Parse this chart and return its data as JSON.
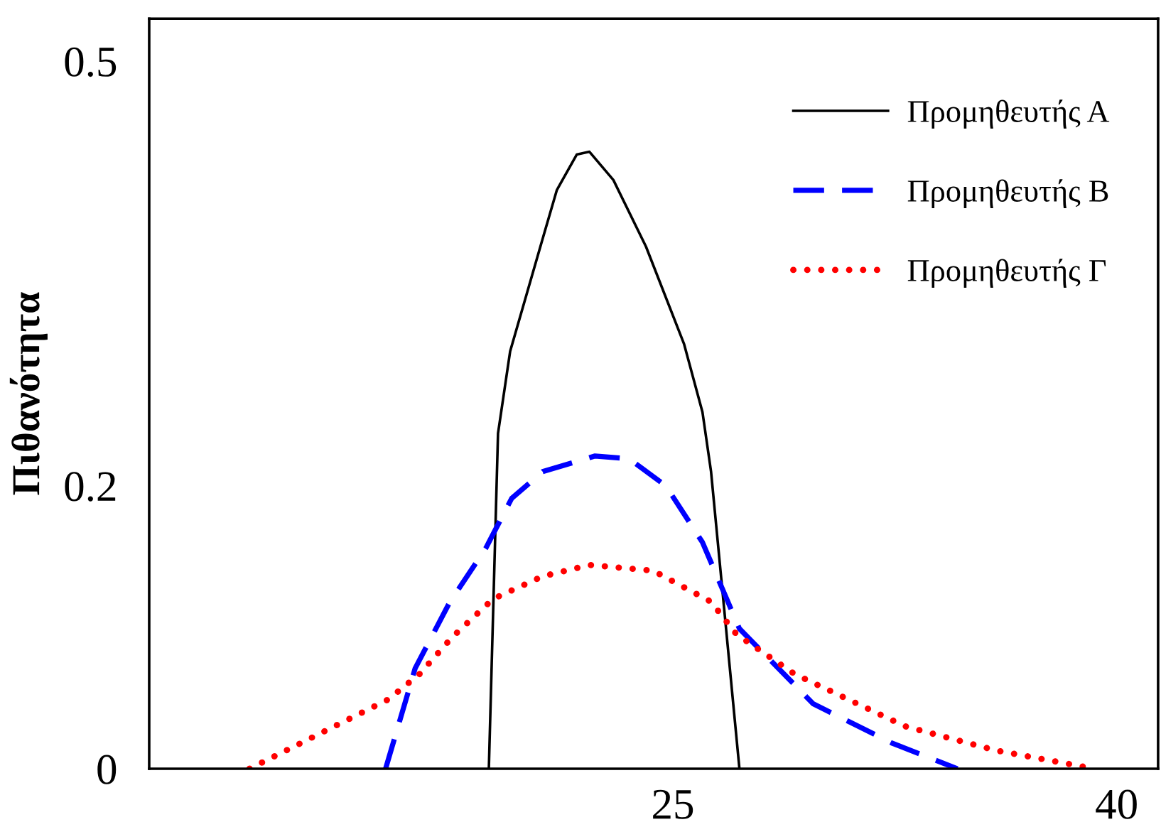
{
  "chart_data": {
    "type": "line",
    "ylabel": "Πιθανότητα",
    "xlim": [
      7.3,
      41.4
    ],
    "ylim": [
      0,
      0.53
    ],
    "xticks": [
      25,
      40
    ],
    "yticks": [
      0,
      0.2,
      0.5
    ],
    "grid": false,
    "legend": "top right",
    "marker": "none",
    "series": [
      {
        "name": "Προμηθευτής Α",
        "color": "#000000",
        "line_style": "solid",
        "x": [
          18.78,
          19.09,
          19.5,
          20.55,
          21.08,
          21.75,
          22.18,
          22.99,
          24.09,
          25.38,
          26.0,
          26.29,
          27.25
        ],
        "values": [
          0,
          0.237,
          0.295,
          0.371,
          0.409,
          0.434,
          0.436,
          0.416,
          0.369,
          0.3,
          0.252,
          0.21,
          0
        ]
      },
      {
        "name": "Προμηθευτής Β",
        "color": "#0000ff",
        "line_style": "dashed",
        "x": [
          15.29,
          16.29,
          17.44,
          18.68,
          19.55,
          20.6,
          22.37,
          23.52,
          24.76,
          26.0,
          27.25,
          29.74,
          32.42,
          34.62
        ],
        "values": [
          0,
          0.071,
          0.117,
          0.156,
          0.191,
          0.21,
          0.221,
          0.219,
          0.2,
          0.16,
          0.099,
          0.046,
          0.018,
          0
        ]
      },
      {
        "name": "Προμηθευτής Γ",
        "color": "#ff0000",
        "line_style": "dotted",
        "x": [
          10.69,
          15.38,
          16.44,
          17.54,
          18.92,
          20.6,
          22.18,
          24.33,
          26.29,
          27.15,
          29.11,
          32.85,
          35.91,
          39.26
        ],
        "values": [
          0,
          0.049,
          0.067,
          0.093,
          0.12,
          0.136,
          0.144,
          0.14,
          0.118,
          0.095,
          0.067,
          0.03,
          0.013,
          0
        ]
      }
    ]
  }
}
